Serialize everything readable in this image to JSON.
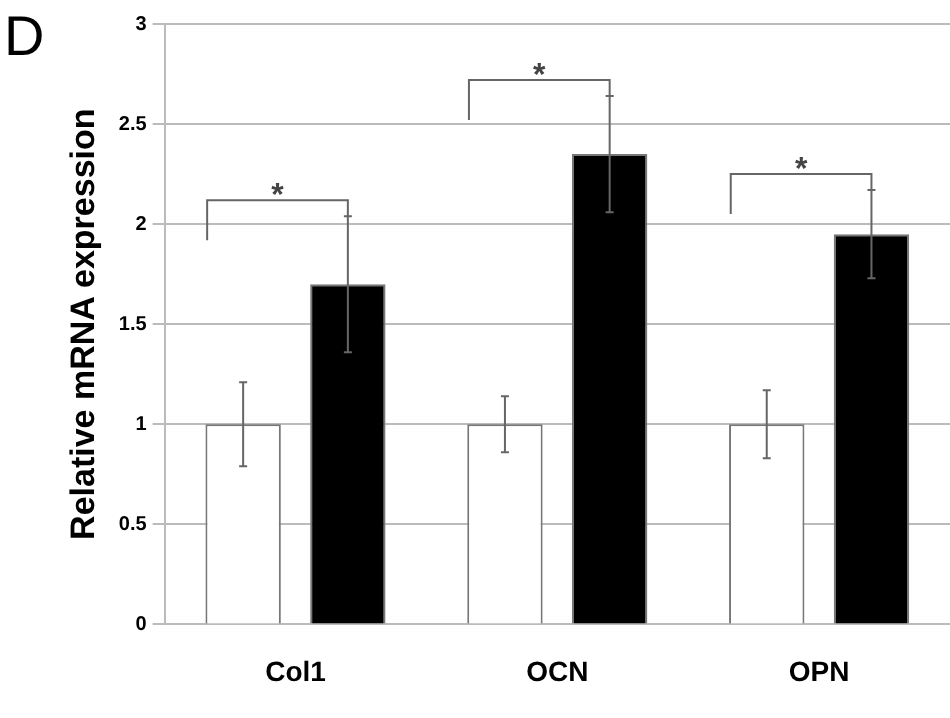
{
  "chart_data": {
    "type": "bar",
    "ylabel": "Relative mRNA expression",
    "categories": [
      "Col1",
      "OCN",
      "OPN"
    ],
    "series": [
      {
        "color": "#ffffff",
        "values": [
          1,
          1,
          1
        ],
        "errors": [
          0.21,
          0.14,
          0.17
        ]
      },
      {
        "color": "#000000",
        "values": [
          1.7,
          2.35,
          1.95
        ],
        "errors": [
          0.34,
          0.29,
          0.22
        ]
      }
    ],
    "ylim": [
      0,
      3
    ],
    "yticks": [
      0,
      0.5,
      1,
      1.5,
      2,
      2.5,
      3
    ],
    "grid": "y",
    "legend": false,
    "annotations": [
      "D",
      "*",
      "*",
      "*"
    ]
  }
}
